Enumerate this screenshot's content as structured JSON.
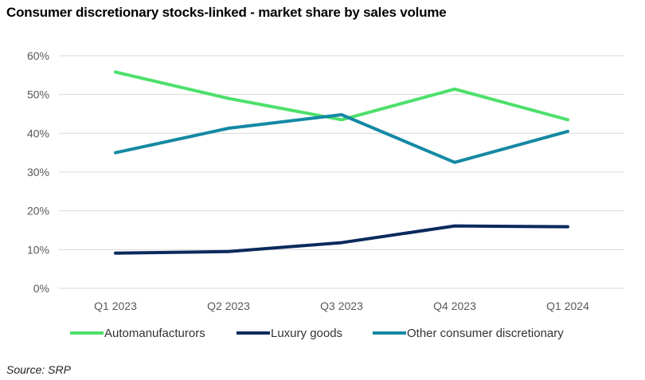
{
  "title": "Consumer discretionary stocks-linked - market share by sales volume",
  "source": "Source: SRP",
  "chart_data": {
    "type": "line",
    "title": "Consumer discretionary stocks-linked - market share by sales volume",
    "xlabel": "",
    "ylabel": "",
    "categories": [
      "Q1 2023",
      "Q2 2023",
      "Q3 2023",
      "Q4 2023",
      "Q1 2024"
    ],
    "y_ticks": [
      "0%",
      "10%",
      "20%",
      "30%",
      "40%",
      "50%",
      "60%"
    ],
    "ylim": [
      0,
      60
    ],
    "grid": true,
    "legend_position": "bottom",
    "series": [
      {
        "name": "Automanufacturors",
        "color": "#4de06b",
        "values": [
          55.8,
          49,
          43.5,
          51.4,
          43.5
        ]
      },
      {
        "name": "Luxury goods",
        "color": "#0a2a5c",
        "values": [
          9.1,
          9.5,
          11.8,
          16.1,
          15.9
        ]
      },
      {
        "name": "Other consumer discretionary",
        "color": "#1489a3",
        "values": [
          35,
          41.3,
          44.8,
          32.5,
          40.5
        ]
      }
    ]
  }
}
